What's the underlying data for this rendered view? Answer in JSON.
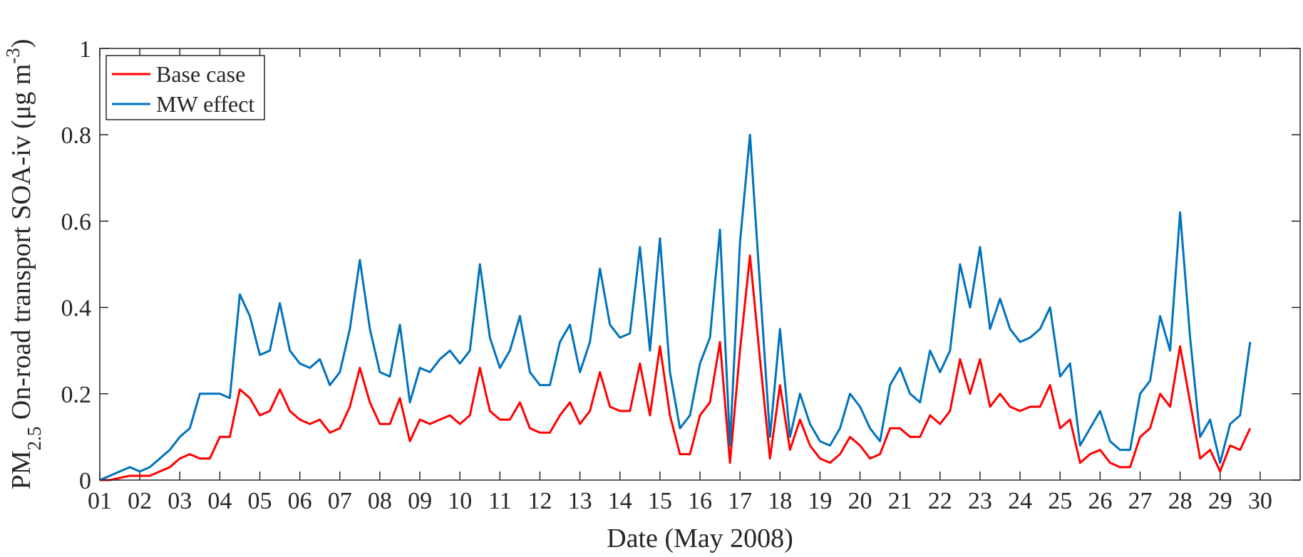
{
  "chart_data": {
    "type": "line",
    "xlabel": "Date (May 2008)",
    "ylabel": {
      "main": "PM",
      "sub": "2.5",
      "text": " On-road transport SOA-iv (μg m",
      "sup": "-3",
      "end": ")"
    },
    "xlim": [
      1,
      31
    ],
    "ylim": [
      0,
      1
    ],
    "xticks": [
      {
        "value": 1,
        "label": "01"
      },
      {
        "value": 2,
        "label": "02"
      },
      {
        "value": 3,
        "label": "03"
      },
      {
        "value": 4,
        "label": "04"
      },
      {
        "value": 5,
        "label": "05"
      },
      {
        "value": 6,
        "label": "06"
      },
      {
        "value": 7,
        "label": "07"
      },
      {
        "value": 8,
        "label": "08"
      },
      {
        "value": 9,
        "label": "09"
      },
      {
        "value": 10,
        "label": "10"
      },
      {
        "value": 11,
        "label": "11"
      },
      {
        "value": 12,
        "label": "12"
      },
      {
        "value": 13,
        "label": "13"
      },
      {
        "value": 14,
        "label": "14"
      },
      {
        "value": 15,
        "label": "15"
      },
      {
        "value": 16,
        "label": "16"
      },
      {
        "value": 17,
        "label": "17"
      },
      {
        "value": 18,
        "label": "18"
      },
      {
        "value": 19,
        "label": "19"
      },
      {
        "value": 20,
        "label": "20"
      },
      {
        "value": 21,
        "label": "21"
      },
      {
        "value": 22,
        "label": "22"
      },
      {
        "value": 23,
        "label": "23"
      },
      {
        "value": 24,
        "label": "24"
      },
      {
        "value": 25,
        "label": "25"
      },
      {
        "value": 26,
        "label": "26"
      },
      {
        "value": 27,
        "label": "27"
      },
      {
        "value": 28,
        "label": "28"
      },
      {
        "value": 29,
        "label": "29"
      },
      {
        "value": 30,
        "label": "30"
      }
    ],
    "yticks": [
      0,
      0.2,
      0.4,
      0.6,
      0.8,
      1
    ],
    "grid": false,
    "legend": "upper left",
    "x": [
      1,
      1.25,
      1.5,
      1.75,
      2,
      2.25,
      2.5,
      2.75,
      3,
      3.25,
      3.5,
      3.75,
      4,
      4.25,
      4.5,
      4.75,
      5,
      5.25,
      5.5,
      5.75,
      6,
      6.25,
      6.5,
      6.75,
      7,
      7.25,
      7.5,
      7.75,
      8,
      8.25,
      8.5,
      8.75,
      9,
      9.25,
      9.5,
      9.75,
      10,
      10.25,
      10.5,
      10.75,
      11,
      11.25,
      11.5,
      11.75,
      12,
      12.25,
      12.5,
      12.75,
      13,
      13.25,
      13.5,
      13.75,
      14,
      14.25,
      14.5,
      14.75,
      15,
      15.25,
      15.5,
      15.75,
      16,
      16.25,
      16.5,
      16.75,
      17,
      17.25,
      17.5,
      17.75,
      18,
      18.25,
      18.5,
      18.75,
      19,
      19.25,
      19.5,
      19.75,
      20,
      20.25,
      20.5,
      20.75,
      21,
      21.25,
      21.5,
      21.75,
      22,
      22.25,
      22.5,
      22.75,
      23,
      23.25,
      23.5,
      23.75,
      24,
      24.25,
      24.5,
      24.75,
      25,
      25.25,
      25.5,
      25.75,
      26,
      26.25,
      26.5,
      26.75,
      27,
      27.25,
      27.5,
      27.75,
      28,
      28.25,
      28.5,
      28.75,
      29,
      29.25,
      29.5,
      29.75
    ],
    "series": [
      {
        "name": "Base case",
        "color": "#ff0000",
        "values": [
          0,
          0,
          0.005,
          0.01,
          0.01,
          0.01,
          0.02,
          0.03,
          0.05,
          0.06,
          0.05,
          0.05,
          0.1,
          0.1,
          0.21,
          0.19,
          0.15,
          0.16,
          0.21,
          0.16,
          0.14,
          0.13,
          0.14,
          0.11,
          0.12,
          0.17,
          0.26,
          0.18,
          0.13,
          0.13,
          0.19,
          0.09,
          0.14,
          0.13,
          0.14,
          0.15,
          0.13,
          0.15,
          0.26,
          0.16,
          0.14,
          0.14,
          0.18,
          0.12,
          0.11,
          0.11,
          0.15,
          0.18,
          0.13,
          0.16,
          0.25,
          0.17,
          0.16,
          0.16,
          0.27,
          0.15,
          0.31,
          0.15,
          0.06,
          0.06,
          0.15,
          0.18,
          0.32,
          0.04,
          0.3,
          0.52,
          0.28,
          0.05,
          0.22,
          0.07,
          0.14,
          0.08,
          0.05,
          0.04,
          0.06,
          0.1,
          0.08,
          0.05,
          0.06,
          0.12,
          0.12,
          0.1,
          0.1,
          0.15,
          0.13,
          0.16,
          0.28,
          0.2,
          0.28,
          0.17,
          0.2,
          0.17,
          0.16,
          0.17,
          0.17,
          0.22,
          0.12,
          0.14,
          0.04,
          0.06,
          0.07,
          0.04,
          0.03,
          0.03,
          0.1,
          0.12,
          0.2,
          0.17,
          0.31,
          0.18,
          0.05,
          0.07,
          0.02,
          0.08,
          0.07,
          0.12
        ]
      },
      {
        "name": "MW effect",
        "color": "#0072bd",
        "values": [
          0,
          0.01,
          0.02,
          0.03,
          0.02,
          0.03,
          0.05,
          0.07,
          0.1,
          0.12,
          0.2,
          0.2,
          0.2,
          0.19,
          0.43,
          0.38,
          0.29,
          0.3,
          0.41,
          0.3,
          0.27,
          0.26,
          0.28,
          0.22,
          0.25,
          0.35,
          0.51,
          0.35,
          0.25,
          0.24,
          0.36,
          0.18,
          0.26,
          0.25,
          0.28,
          0.3,
          0.27,
          0.3,
          0.5,
          0.33,
          0.26,
          0.3,
          0.38,
          0.25,
          0.22,
          0.22,
          0.32,
          0.36,
          0.25,
          0.32,
          0.49,
          0.36,
          0.33,
          0.34,
          0.54,
          0.3,
          0.56,
          0.25,
          0.12,
          0.15,
          0.27,
          0.33,
          0.58,
          0.08,
          0.55,
          0.8,
          0.45,
          0.1,
          0.35,
          0.1,
          0.2,
          0.13,
          0.09,
          0.08,
          0.12,
          0.2,
          0.17,
          0.12,
          0.09,
          0.22,
          0.26,
          0.2,
          0.18,
          0.3,
          0.25,
          0.3,
          0.5,
          0.4,
          0.54,
          0.35,
          0.42,
          0.35,
          0.32,
          0.33,
          0.35,
          0.4,
          0.24,
          0.27,
          0.08,
          0.12,
          0.16,
          0.09,
          0.07,
          0.07,
          0.2,
          0.23,
          0.38,
          0.3,
          0.62,
          0.33,
          0.1,
          0.14,
          0.04,
          0.13,
          0.15,
          0.32
        ]
      }
    ]
  }
}
